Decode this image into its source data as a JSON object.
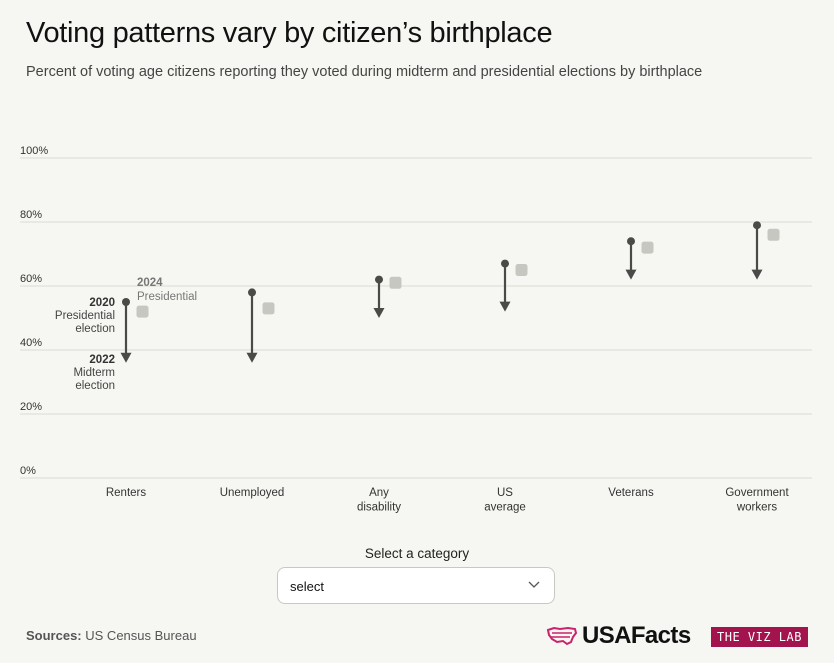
{
  "title": "Voting patterns vary by citizen’s birthplace",
  "subtitle": "Percent of voting age citizens reporting they voted during midterm and presidential elections by birthplace",
  "annotations": {
    "y2020_year": "2020",
    "y2020_line1": "Presidential",
    "y2020_line2": "election",
    "y2022_year": "2022",
    "y2022_line1": "Midterm",
    "y2022_line2": "election",
    "y2024_year": "2024",
    "y2024_line1": "Presidential"
  },
  "control": {
    "label": "Select a category",
    "value": "select"
  },
  "footer": {
    "sources_label": "Sources:",
    "sources_text": "US Census Bureau",
    "brand": "USAFacts",
    "badge": "THE VIZ LAB"
  },
  "colors": {
    "arrow": "#4a4a48",
    "marker_2024": "#c7c7c2",
    "grid": "#dcdcd6",
    "badge": "#a3144f",
    "brand_flag": "#c8236b"
  },
  "chart_data": {
    "type": "dumbbell-arrow",
    "title": "Voting patterns vary by citizen’s birthplace",
    "ylim": [
      0,
      100
    ],
    "yticks": [
      "0%",
      "20%",
      "40%",
      "60%",
      "80%",
      "100%"
    ],
    "grid": true,
    "categories": [
      [
        "Renters"
      ],
      [
        "Unemployed"
      ],
      [
        "Any",
        "disability"
      ],
      [
        "US",
        "average"
      ],
      [
        "Veterans"
      ],
      [
        "Government",
        "workers"
      ]
    ],
    "series": [
      {
        "name": "2020 Presidential election",
        "values": [
          55,
          58,
          62,
          67,
          74,
          79
        ]
      },
      {
        "name": "2022 Midterm election",
        "values": [
          36,
          36,
          50,
          52,
          62,
          62
        ]
      },
      {
        "name": "2024 Presidential",
        "values": [
          52,
          53,
          61,
          65,
          72,
          76
        ]
      }
    ]
  }
}
